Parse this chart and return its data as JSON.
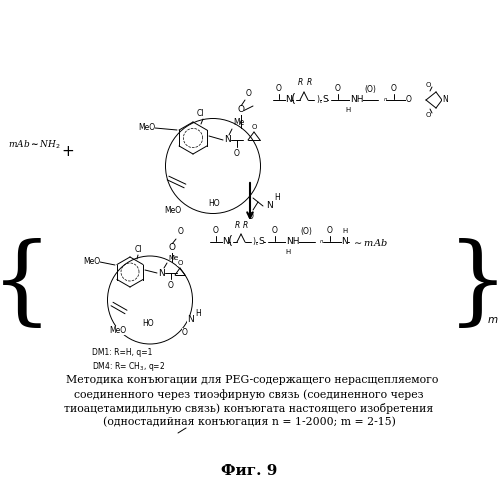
{
  "title": "Фиг. 9",
  "caption_line1": "  Методика конъюгации для PEG-содержащего нерасщепляемого",
  "caption_line2": "соединенного через тиоэфирную связь (соединенного через",
  "caption_line3": "тиоацетамидильную связь) конъюгата настоящего изобретения",
  "caption_line4": "(одностадийная конъюгация n = 1-2000; m = 2-15)",
  "background_color": "#ffffff",
  "text_color": "#000000",
  "fig_width": 4.99,
  "fig_height": 5.0,
  "dpi": 100
}
